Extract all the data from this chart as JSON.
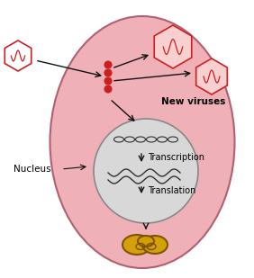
{
  "background_color": "#ffffff",
  "cell_color": "#f0b0b8",
  "cell_border_color": "#b06070",
  "nucleus_color": "#d8d8d8",
  "nucleus_border_color": "#888888",
  "virus_outline": "#cc2020",
  "virus_fill_new": "#f8d0d0",
  "virus_fill_old": "#ffffff",
  "text_new_viruses": "New viruses",
  "text_nucleus": "Nucleus",
  "text_transcription": "Transcription",
  "text_translation": "Translation",
  "text_fontsize": 7.5,
  "arrow_color": "#111111",
  "rna_color": "#cc2020",
  "dna_color": "#303030",
  "protein_color": "#d4a000",
  "protein_outline": "#7a5000",
  "wavy_color": "#303030"
}
